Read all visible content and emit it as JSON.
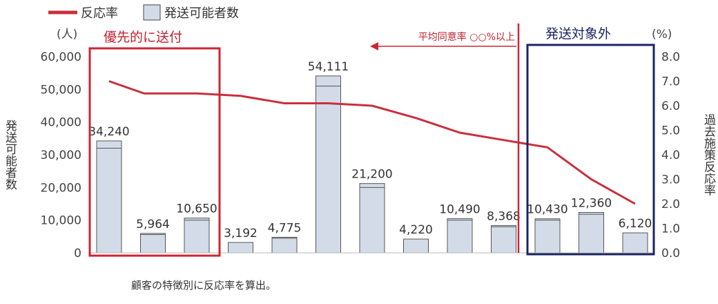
{
  "chart_data": {
    "type": "bar",
    "legend": [
      {
        "name": "反応率",
        "kind": "line",
        "color": "#c8303d"
      },
      {
        "name": "発送可能者数",
        "kind": "bar",
        "color": "#d3dbe8"
      }
    ],
    "y_left": {
      "label": "発送可能者数",
      "unit": "(人)",
      "ylim": [
        0,
        60000
      ],
      "ticks": [
        "0",
        "10,000",
        "20,000",
        "30,000",
        "40,000",
        "50,000",
        "60,000"
      ]
    },
    "y_right": {
      "label": "過去施策反応率",
      "unit": "(%)",
      "ylim": [
        0,
        8
      ],
      "ticks": [
        "0.0",
        "1.0",
        "2.0",
        "3.0",
        "4.0",
        "5.0",
        "6.0",
        "7.0",
        "8.0"
      ]
    },
    "bars": {
      "name": "発送可能者数",
      "values": [
        34240,
        5964,
        10650,
        3192,
        4775,
        54111,
        21200,
        4220,
        10490,
        8368,
        10430,
        12360,
        6120
      ],
      "labels": [
        "34,240",
        "5,964",
        "10,650",
        "3,192",
        "4,775",
        "54,111",
        "21,200",
        "4,220",
        "10,490",
        "8,368",
        "10,430",
        "12,360",
        "6,120"
      ],
      "inner_values": [
        32000,
        5600,
        10000,
        3192,
        4500,
        51000,
        20000,
        4220,
        10000,
        8000,
        10000,
        11800,
        6120
      ]
    },
    "line": {
      "name": "反応率",
      "points": [
        {
          "x": 0,
          "y": 7.0
        },
        {
          "x": 0.8,
          "y": 6.5
        },
        {
          "x": 2,
          "y": 6.5
        },
        {
          "x": 3,
          "y": 6.4
        },
        {
          "x": 4,
          "y": 6.1
        },
        {
          "x": 5,
          "y": 6.1
        },
        {
          "x": 6,
          "y": 6.0
        },
        {
          "x": 7,
          "y": 5.5
        },
        {
          "x": 8,
          "y": 4.9
        },
        {
          "x": 9,
          "y": 4.6
        },
        {
          "x": 10,
          "y": 4.3
        },
        {
          "x": 11,
          "y": 3.0
        },
        {
          "x": 12,
          "y": 2.0
        }
      ]
    },
    "annotations": {
      "priority": "優先的に送付",
      "threshold": "平均同意率 ○○%以上",
      "excluded": "発送対象外"
    },
    "caption": "顧客の特徴別に反応率を算出。"
  }
}
